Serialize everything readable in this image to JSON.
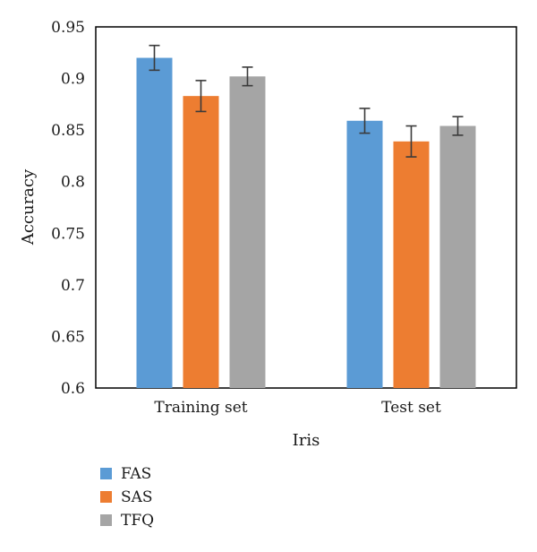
{
  "chart_data": {
    "type": "bar",
    "categories": [
      "Training set",
      "Test set"
    ],
    "series": [
      {
        "name": "FAS",
        "color": "#5b9bd5",
        "values": [
          0.92,
          0.859
        ],
        "errors": [
          0.012,
          0.012
        ]
      },
      {
        "name": "SAS",
        "color": "#ed7d31",
        "values": [
          0.883,
          0.839
        ],
        "errors": [
          0.015,
          0.015
        ]
      },
      {
        "name": "TFQ",
        "color": "#a5a5a5",
        "values": [
          0.902,
          0.854
        ],
        "errors": [
          0.009,
          0.009
        ]
      }
    ],
    "title": "",
    "xlabel": "Iris",
    "ylabel": "Accuracy",
    "ylim": [
      0.6,
      0.95
    ],
    "yticks": [
      "0.6",
      "0.65",
      "0.7",
      "0.75",
      "0.8",
      "0.85",
      "0.9",
      "0.95"
    ],
    "grid": false,
    "legend_position": "bottom-left"
  }
}
